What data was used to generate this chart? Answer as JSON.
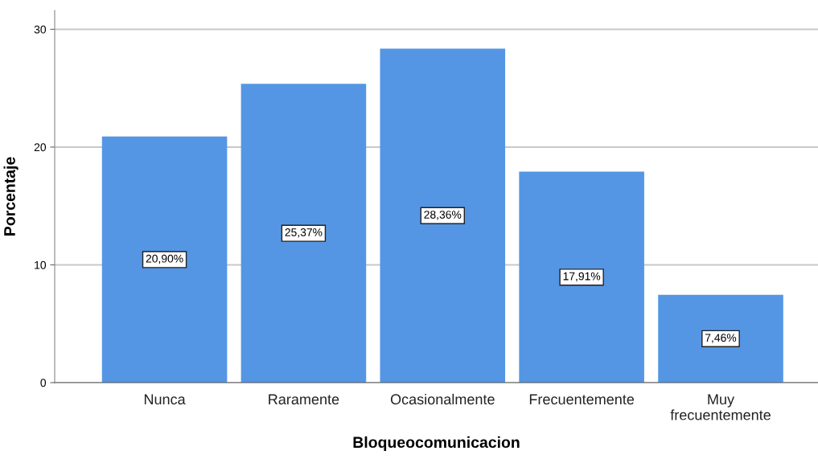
{
  "chart_data": {
    "type": "bar",
    "xlabel": "Bloqueocomunicacion",
    "ylabel": "Porcentaje",
    "categories": [
      "Nunca",
      "Raramente",
      "Ocasionalmente",
      "Frecuentemente",
      "Muy\nfrecuentemente"
    ],
    "values": [
      20.9,
      25.37,
      28.36,
      17.91,
      7.46
    ],
    "value_labels": [
      "20,90%",
      "25,37%",
      "28,36%",
      "17,91%",
      "7,46%"
    ],
    "color": "#5596e4",
    "ylim": [
      0,
      31.6
    ],
    "yticks": [
      0,
      10,
      20,
      30
    ],
    "grid": "y",
    "legend": false
  }
}
